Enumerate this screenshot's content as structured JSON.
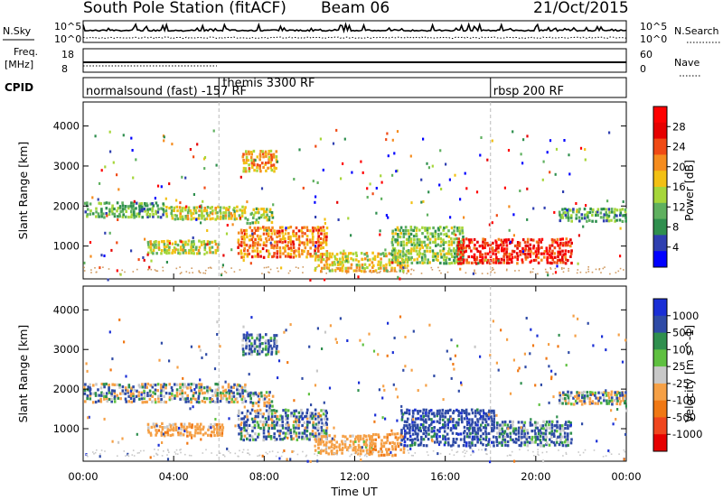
{
  "header": {
    "station": "South Pole Station (fitACF)",
    "beam": "Beam 06",
    "date": "21/Oct/2015"
  },
  "strips": {
    "nsky_label": "N.Sky",
    "nsearch_label": "N.Search",
    "freq_label": "Freq.",
    "freq_unit": "[MHz]",
    "nave_label": "Nave",
    "cpid_label": "CPID",
    "nsky_ticks": [
      "10^5",
      "10^0"
    ],
    "nsearch_ticks": [
      "10^5",
      "10^0"
    ],
    "freq_ticks": [
      "18",
      "8"
    ],
    "nave_ticks": [
      "60",
      "0"
    ]
  },
  "cpid": {
    "segments": [
      {
        "label": "normalsound (fast) -157 RF",
        "start_hour": 0
      },
      {
        "label": "themis 3300 RF",
        "start_hour": 6
      },
      {
        "label": "rbsp 200 RF",
        "start_hour": 18
      }
    ]
  },
  "chart_data": [
    {
      "type": "heatmap",
      "name": "power",
      "ylabel": "Slant Range [km]",
      "xlim": [
        0,
        24
      ],
      "ylim": [
        180,
        4600
      ],
      "yticks": [
        "1000",
        "2000",
        "3000",
        "4000"
      ],
      "colorbar": {
        "label": "Power [dB]",
        "ticks": [
          "4",
          "8",
          "12",
          "16",
          "20",
          "24",
          "28"
        ],
        "range": [
          0,
          30
        ],
        "colors": [
          "#0000ff",
          "#2f3fb0",
          "#2f8f4e",
          "#5fb05f",
          "#a6d63a",
          "#f2c014",
          "#f58c1e",
          "#f04a14",
          "#e60000",
          "#ff0000"
        ]
      },
      "echo_regions": [
        {
          "t0": 0.0,
          "t1": 3.6,
          "r0": 1700,
          "r1": 2100,
          "value": 10
        },
        {
          "t0": 3.6,
          "t1": 7.2,
          "r0": 1650,
          "r1": 2000,
          "value": 14
        },
        {
          "t0": 7.2,
          "t1": 8.4,
          "r0": 1550,
          "r1": 1950,
          "value": 12
        },
        {
          "t0": 7.0,
          "t1": 8.6,
          "r0": 2850,
          "r1": 3400,
          "value": 18
        },
        {
          "t0": 2.8,
          "t1": 6.0,
          "r0": 800,
          "r1": 1150,
          "value": 14
        },
        {
          "t0": 6.8,
          "t1": 10.8,
          "r0": 700,
          "r1": 1500,
          "value": 20
        },
        {
          "t0": 10.2,
          "t1": 14.4,
          "r0": 350,
          "r1": 850,
          "value": 16
        },
        {
          "t0": 13.6,
          "t1": 16.8,
          "r0": 550,
          "r1": 1500,
          "value": 12
        },
        {
          "t0": 16.5,
          "t1": 21.6,
          "r0": 550,
          "r1": 1200,
          "value": 25
        },
        {
          "t0": 21.0,
          "t1": 24.0,
          "r0": 1600,
          "r1": 1950,
          "value": 10
        }
      ]
    },
    {
      "type": "heatmap",
      "name": "velocity",
      "ylabel": "Slant Range [km]",
      "xlabel": "Time UT",
      "xlim": [
        0,
        24
      ],
      "ylim": [
        180,
        4600
      ],
      "yticks": [
        "1000",
        "2000",
        "3000",
        "4000"
      ],
      "xticks": [
        "00:00",
        "04:00",
        "08:00",
        "12:00",
        "16:00",
        "20:00",
        "00:00"
      ],
      "colorbar": {
        "label": "Velocity [m s^-1]",
        "ticks": [
          "1000",
          "500",
          "100",
          "25",
          "-25",
          "-100",
          "-500",
          "-1000"
        ],
        "colors": [
          "#1a2fd6",
          "#2f4ba6",
          "#2f8f4e",
          "#5fc040",
          "#c8c8c8",
          "#f5a046",
          "#f07814",
          "#f0461e",
          "#e60000"
        ]
      },
      "echo_regions": [
        {
          "t0": 0.0,
          "t1": 7.2,
          "r0": 1650,
          "r1": 2150,
          "value": 0
        },
        {
          "t0": 7.2,
          "t1": 8.4,
          "r0": 1550,
          "r1": 1950,
          "value": 0
        },
        {
          "t0": 7.0,
          "t1": 8.6,
          "r0": 2850,
          "r1": 3400,
          "value": 150
        },
        {
          "t0": 2.8,
          "t1": 6.2,
          "r0": 800,
          "r1": 1150,
          "value": -300
        },
        {
          "t0": 6.8,
          "t1": 10.8,
          "r0": 700,
          "r1": 1500,
          "value": 80
        },
        {
          "t0": 10.2,
          "t1": 12.8,
          "r0": 350,
          "r1": 850,
          "value": -250
        },
        {
          "t0": 12.6,
          "t1": 14.2,
          "r0": 300,
          "r1": 900,
          "value": -400
        },
        {
          "t0": 14.0,
          "t1": 18.2,
          "r0": 550,
          "r1": 1500,
          "value": 300
        },
        {
          "t0": 18.2,
          "t1": 21.6,
          "r0": 550,
          "r1": 1200,
          "value": 150
        },
        {
          "t0": 21.0,
          "t1": 24.0,
          "r0": 1600,
          "r1": 1950,
          "value": 0
        }
      ]
    }
  ]
}
